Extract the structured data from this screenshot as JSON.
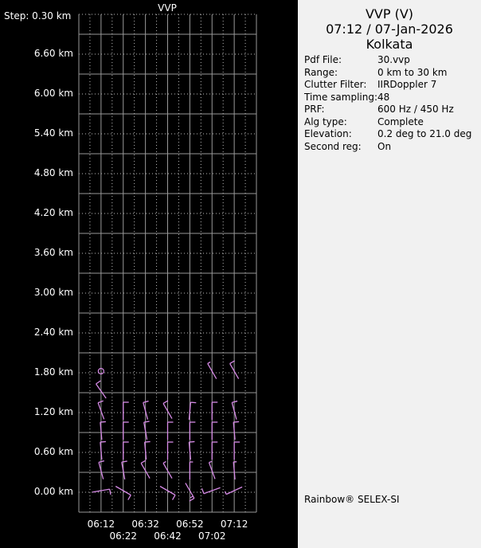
{
  "chart_data": {
    "type": "wind-profile",
    "title": "VVP",
    "step_label": "Step: 0.30 km",
    "ylim_km": [
      -0.3,
      7.2
    ],
    "y_ticks": [
      "6.60 km",
      "6.00 km",
      "5.40 km",
      "4.80 km",
      "4.20 km",
      "3.60 km",
      "3.00 km",
      "2.40 km",
      "1.80 km",
      "1.20 km",
      "0.60 km",
      "0.00 km"
    ],
    "y_tick_values": [
      6.6,
      6.0,
      5.4,
      4.8,
      4.2,
      3.6,
      3.0,
      2.4,
      1.8,
      1.2,
      0.6,
      0.0
    ],
    "x_range": [
      "06:02",
      "07:22"
    ],
    "x_ticks": [
      "06:12",
      "06:22",
      "06:32",
      "06:42",
      "06:52",
      "07:02",
      "07:12"
    ],
    "grid": true,
    "barb_color": "#d68ae6",
    "barbs": [
      {
        "time": "06:12",
        "height_km": 1.8,
        "calm": true
      },
      {
        "time": "06:12",
        "height_km": 1.5,
        "dir": 325,
        "speed": 10
      },
      {
        "time": "06:12",
        "height_km": 1.2,
        "dir": 340,
        "speed": 10
      },
      {
        "time": "06:12",
        "height_km": 0.9,
        "dir": 355,
        "speed": 10
      },
      {
        "time": "06:12",
        "height_km": 0.6,
        "dir": 355,
        "speed": 10
      },
      {
        "time": "06:12",
        "height_km": 0.3,
        "dir": 345,
        "speed": 10
      },
      {
        "time": "06:12",
        "height_km": 0.0,
        "dir": 80,
        "speed": 10
      },
      {
        "time": "06:22",
        "height_km": 1.2,
        "dir": 0,
        "speed": 10
      },
      {
        "time": "06:22",
        "height_km": 0.9,
        "dir": 0,
        "speed": 10
      },
      {
        "time": "06:22",
        "height_km": 0.6,
        "dir": 0,
        "speed": 10
      },
      {
        "time": "06:22",
        "height_km": 0.3,
        "dir": 350,
        "speed": 10
      },
      {
        "time": "06:22",
        "height_km": 0.0,
        "dir": 120,
        "speed": 10
      },
      {
        "time": "06:32",
        "height_km": 1.2,
        "dir": 345,
        "speed": 10
      },
      {
        "time": "06:32",
        "height_km": 0.9,
        "dir": 350,
        "speed": 10
      },
      {
        "time": "06:32",
        "height_km": 0.6,
        "dir": 355,
        "speed": 10
      },
      {
        "time": "06:32",
        "height_km": 0.3,
        "dir": 330,
        "speed": 10
      },
      {
        "time": "06:42",
        "height_km": 1.2,
        "dir": 330,
        "speed": 10
      },
      {
        "time": "06:42",
        "height_km": 0.9,
        "dir": 0,
        "speed": 10
      },
      {
        "time": "06:42",
        "height_km": 0.6,
        "dir": 0,
        "speed": 10
      },
      {
        "time": "06:42",
        "height_km": 0.3,
        "dir": 330,
        "speed": 5
      },
      {
        "time": "06:42",
        "height_km": 0.0,
        "dir": 120,
        "speed": 10
      },
      {
        "time": "06:52",
        "height_km": 1.2,
        "dir": 5,
        "speed": 10
      },
      {
        "time": "06:52",
        "height_km": 0.9,
        "dir": 0,
        "speed": 10
      },
      {
        "time": "06:52",
        "height_km": 0.6,
        "dir": 355,
        "speed": 10
      },
      {
        "time": "06:52",
        "height_km": 0.3,
        "dir": 0,
        "speed": 5
      },
      {
        "time": "06:52",
        "height_km": 0.0,
        "dir": 150,
        "speed": 15
      },
      {
        "time": "07:02",
        "height_km": 1.8,
        "dir": 330,
        "speed": 5
      },
      {
        "time": "07:02",
        "height_km": 1.2,
        "dir": 0,
        "speed": 10
      },
      {
        "time": "07:02",
        "height_km": 0.9,
        "dir": 0,
        "speed": 10
      },
      {
        "time": "07:02",
        "height_km": 0.6,
        "dir": 0,
        "speed": 10
      },
      {
        "time": "07:02",
        "height_km": 0.3,
        "dir": 340,
        "speed": 5
      },
      {
        "time": "07:02",
        "height_km": 0.0,
        "dir": 250,
        "speed": 10
      },
      {
        "time": "07:12",
        "height_km": 1.8,
        "dir": 330,
        "speed": 10
      },
      {
        "time": "07:12",
        "height_km": 1.2,
        "dir": 345,
        "speed": 10
      },
      {
        "time": "07:12",
        "height_km": 0.9,
        "dir": 355,
        "speed": 10
      },
      {
        "time": "07:12",
        "height_km": 0.6,
        "dir": 0,
        "speed": 10
      },
      {
        "time": "07:12",
        "height_km": 0.3,
        "dir": 355,
        "speed": 5
      },
      {
        "time": "07:12",
        "height_km": 0.0,
        "dir": 245,
        "speed": 5
      }
    ]
  },
  "info": {
    "title": "VVP (V)",
    "datetime": "07:12 / 07-Jan-2026",
    "site": "Kolkata",
    "rows": [
      {
        "label": "Pdf File:",
        "value": "30.vvp"
      },
      {
        "label": "Range:",
        "value": "0 km to 30 km"
      },
      {
        "label": "Clutter Filter:",
        "value": "IIRDoppler 7"
      },
      {
        "label": "Time sampling:",
        "value": "48"
      },
      {
        "label": "PRF:",
        "value": "600 Hz / 450 Hz"
      },
      {
        "label": "Alg type:",
        "value": "Complete"
      },
      {
        "label": "Elevation:",
        "value": "0.2 deg to 21.0 deg"
      },
      {
        "label": "Second reg:",
        "value": "On"
      }
    ],
    "footer": "Rainbow® SELEX-SI"
  }
}
